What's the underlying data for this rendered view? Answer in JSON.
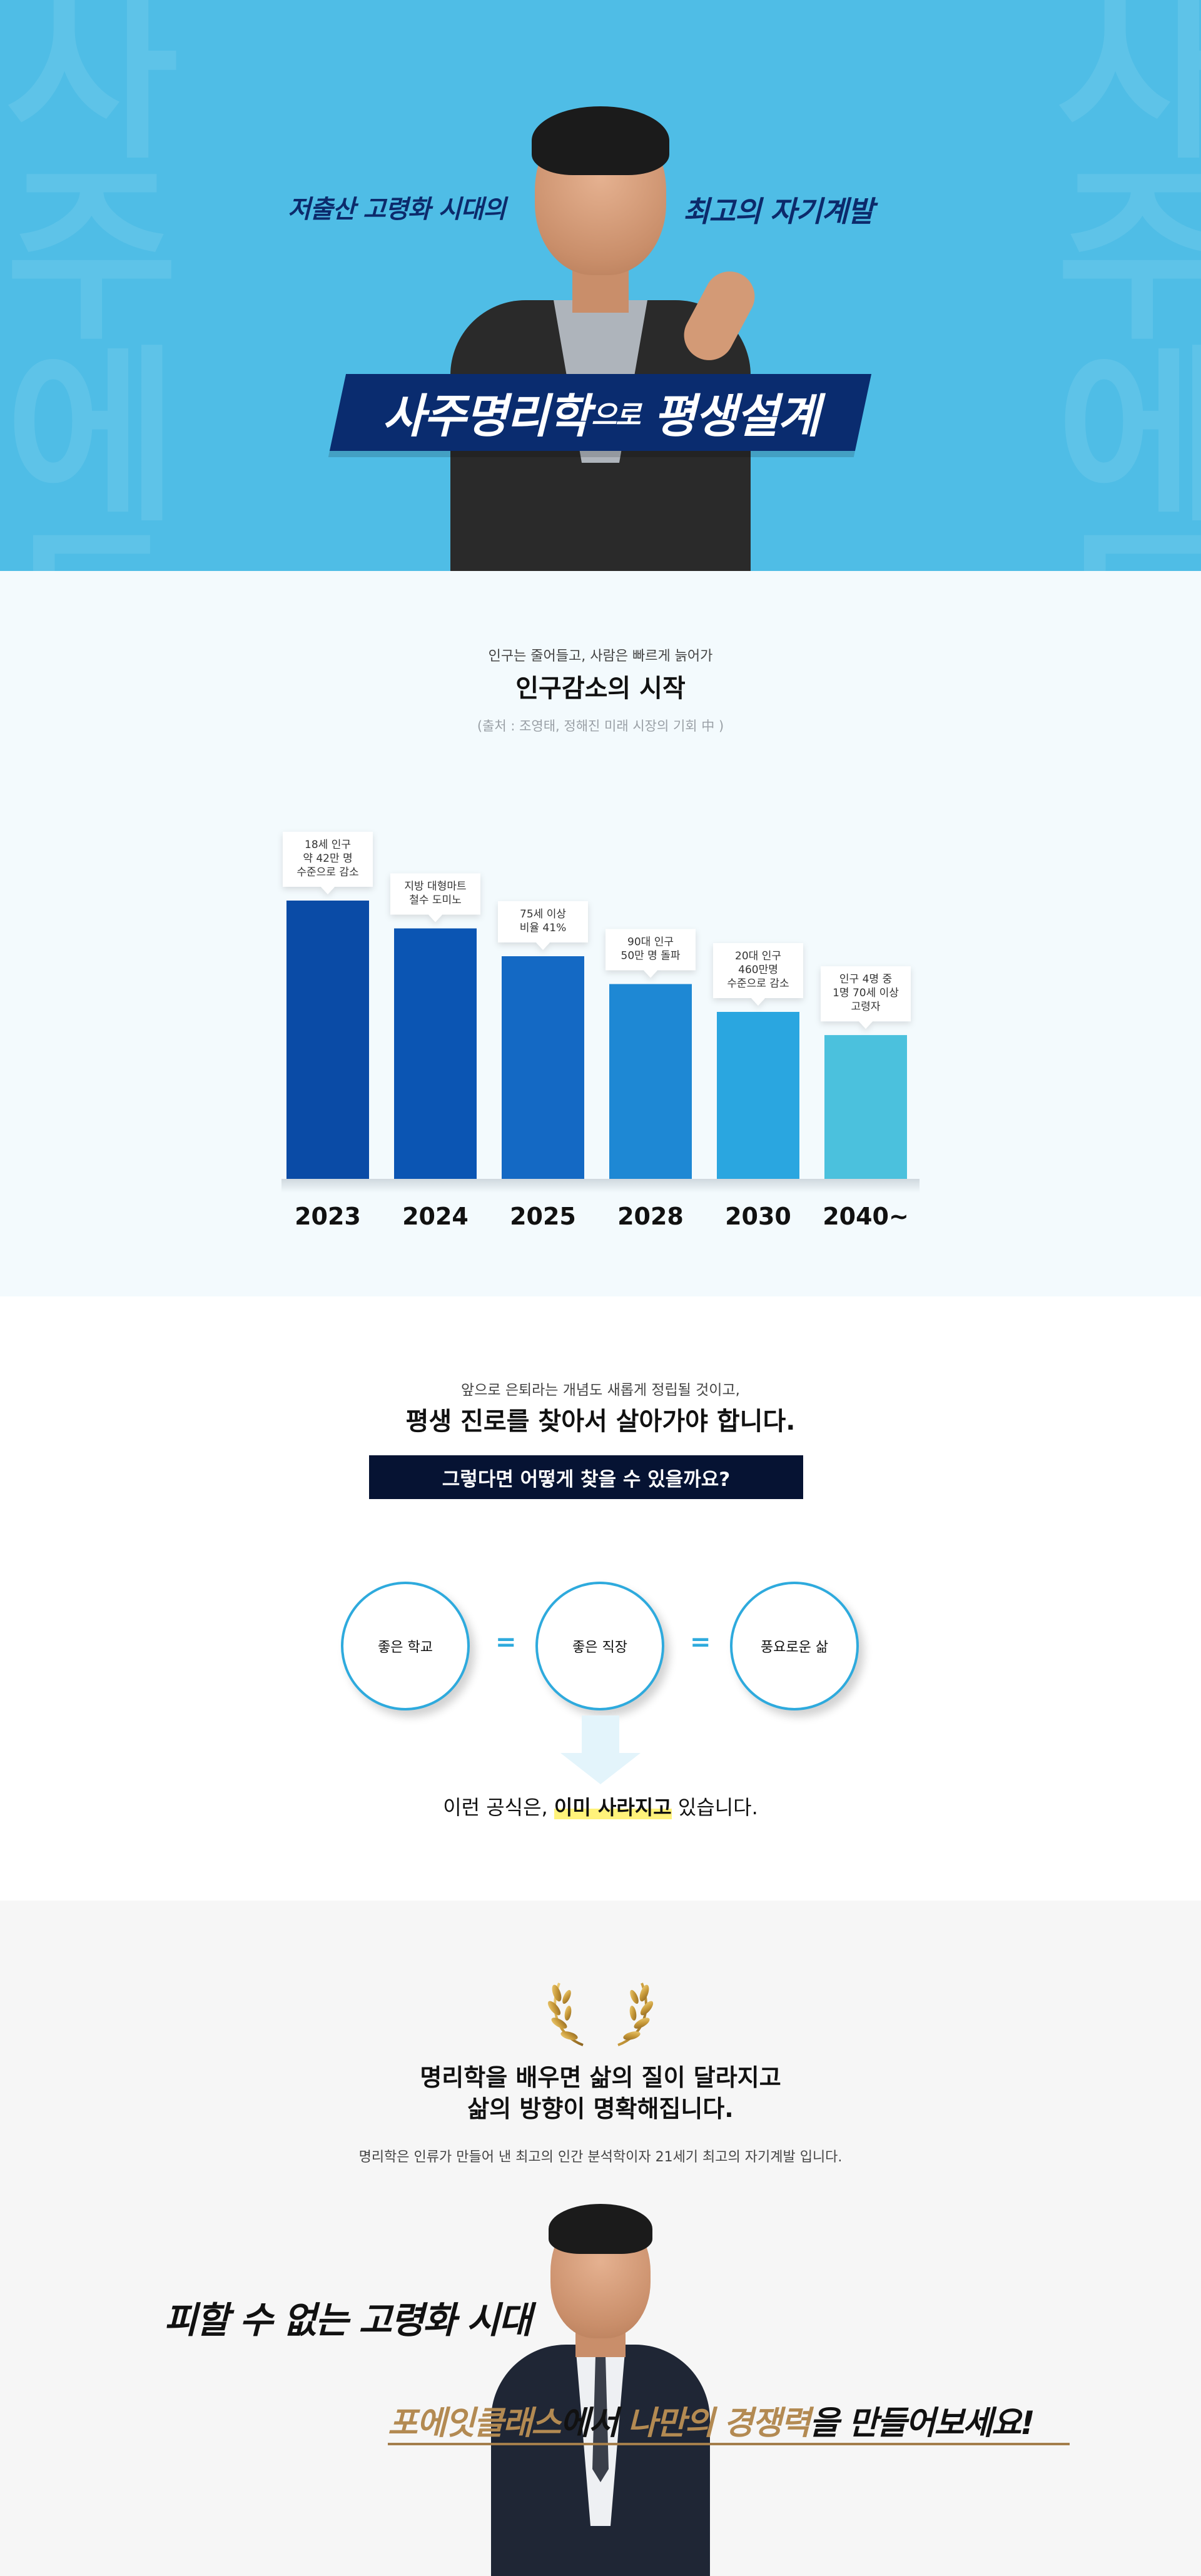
{
  "hero": {
    "sub_left": "저출산 고령화 시대의",
    "sub_right": "최고의 자기계발",
    "title_main": "사주명리학",
    "title_particle": "으로",
    "title_end": "평생설계",
    "colors": {
      "background": "#4fbde6",
      "banner": "#0a2c6f"
    }
  },
  "population": {
    "pre_title": "인구는 줄어들고, 사람은 빠르게 늙어가",
    "title": "인구감소의 시작",
    "source": "(출처 : 조영태, 정해진 미래 시장의 기회 中 )",
    "chart_data": {
      "type": "bar",
      "categories": [
        "2023",
        "2024",
        "2025",
        "2028",
        "2030",
        "2040~"
      ],
      "values": [
        6,
        5.4,
        4.8,
        4.2,
        3.6,
        3.1
      ],
      "annotations": [
        [
          "18세 인구",
          "약 42만 명",
          "수준으로 감소"
        ],
        [
          "지방 대형마트",
          "철수 도미노"
        ],
        [
          "75세 이상",
          "비율 41%"
        ],
        [
          "90대 인구",
          "50만 명 돌파"
        ],
        [
          "20대 인구",
          "460만명",
          "수준으로 감소"
        ],
        [
          "인구 4명 중",
          "1명 70세 이상",
          "고령자"
        ]
      ],
      "colors": [
        "#0a4ba6",
        "#0b55b3",
        "#1469c4",
        "#1e88d4",
        "#2aa6e0",
        "#4bc1dd"
      ]
    }
  },
  "formula": {
    "pre_title": "앞으로 은퇴라는 개념도 새롭게 정립될 것이고,",
    "title": "평생 진로를 찾아서 살아가야 합니다.",
    "question": "그렇다면 어떻게 찾을 수 있을까요?",
    "circles": [
      "좋은 학교",
      "좋은 직장",
      "풍요로운 삶"
    ],
    "equals": "=",
    "result_prefix": "이런 공식은, ",
    "result_highlight": "이미 사라지고",
    "result_suffix": " 있습니다."
  },
  "closing": {
    "title_line1": "명리학을 배우면 삶의 질이 달라지고",
    "title_line2": "삶의 방향이 명확해집니다.",
    "description": "명리학은 인류가 만들어 낸 최고의 인간 분석학이자 21세기 최고의 자기계발 입니다.",
    "slogan1": "피할 수 없는 고령화 시대",
    "slogan2_brand": "포에잇클래스",
    "slogan2_mid": "에서 ",
    "slogan2_gold": "나만의 경쟁력",
    "slogan2_end": "을 만들어보세요!",
    "colors": {
      "gold": "#b38a52"
    }
  }
}
